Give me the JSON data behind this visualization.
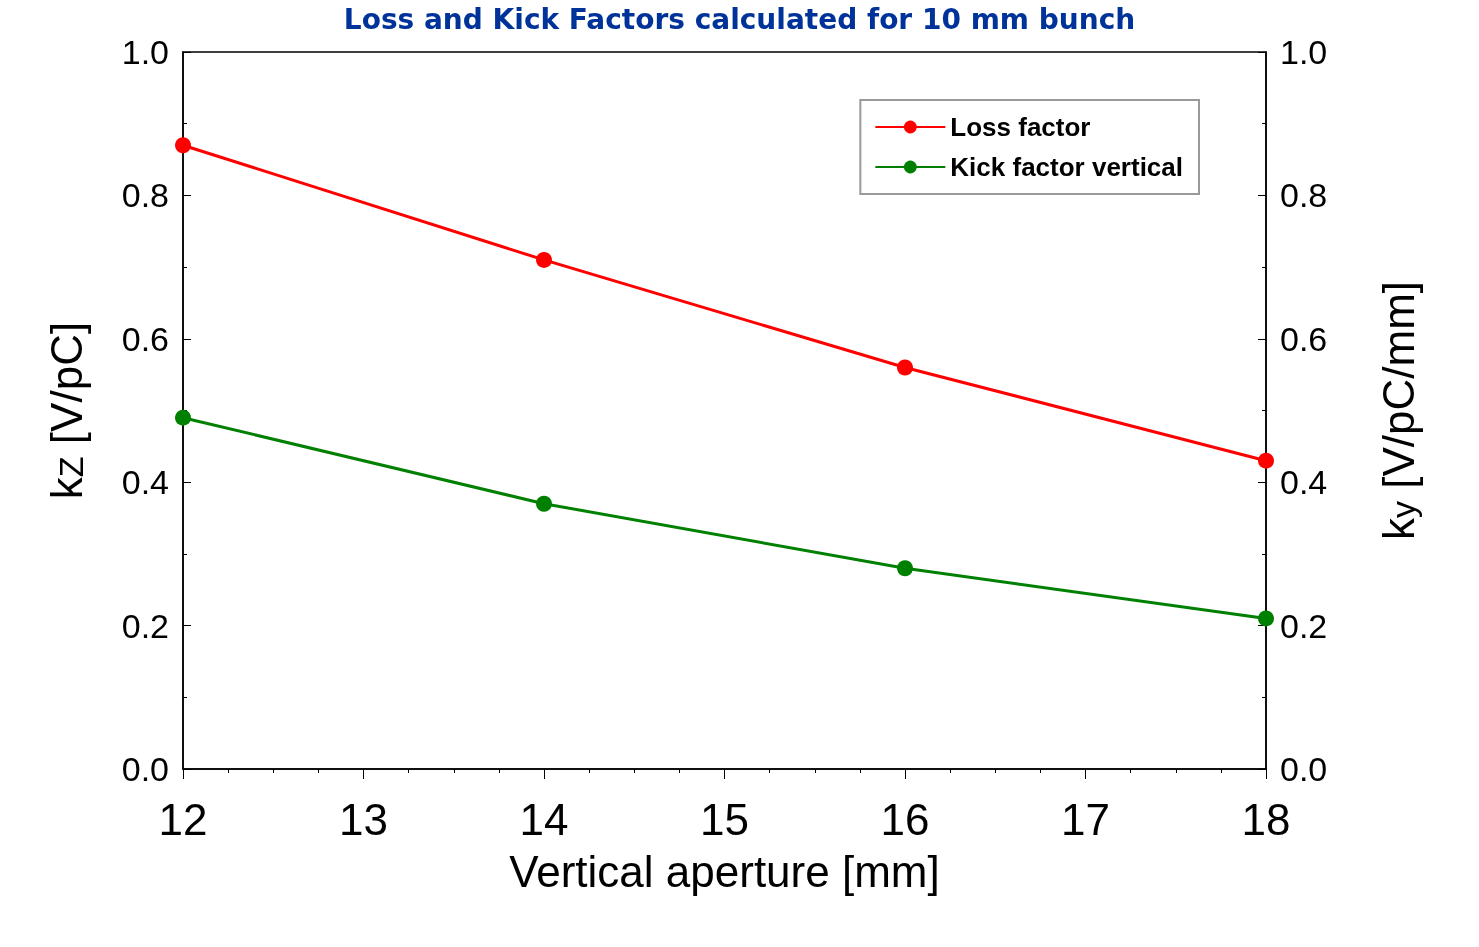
{
  "chart_data": {
    "type": "line",
    "title": "Loss and Kick Factors calculated for 10 mm bunch",
    "xlabel": "Vertical aperture [mm]",
    "ylabel": "k$_{Z}$ [V/pC]",
    "y2label": "k$_{y}$ [V/pC/mm]",
    "x": [
      12,
      14,
      16,
      18
    ],
    "series": [
      {
        "name": "Loss factor",
        "color": "#ff0000",
        "values": [
          0.87,
          0.71,
          0.56,
          0.43
        ]
      },
      {
        "name": "Kick factor vertical",
        "color": "#008000",
        "values": [
          0.49,
          0.37,
          0.28,
          0.21
        ],
        "axis": "y2"
      }
    ],
    "xlim": [
      12,
      18
    ],
    "xticks": [
      12,
      13,
      14,
      15,
      16,
      17,
      18
    ],
    "ylim": [
      0,
      1
    ],
    "yticks": [
      {
        "value": 0,
        "label": "0.0"
      },
      {
        "value": 0.2,
        "label": "0.2"
      },
      {
        "value": 0.4,
        "label": "0.4"
      },
      {
        "value": 0.6,
        "label": "0.6"
      },
      {
        "value": 0.8,
        "label": "0.8"
      },
      {
        "value": 1,
        "label": "1.0"
      }
    ],
    "y2lim": [
      0,
      1
    ],
    "y2ticks": [
      {
        "value": 0,
        "label": "0.0"
      },
      {
        "value": 0.2,
        "label": "0.2"
      },
      {
        "value": 0.4,
        "label": "0.4"
      },
      {
        "value": 0.6,
        "label": "0.6"
      },
      {
        "value": 0.8,
        "label": "0.8"
      },
      {
        "value": 1,
        "label": "1.0"
      }
    ],
    "grid": false,
    "legend": "top right",
    "marker": "circle",
    "line_style": "solid"
  }
}
